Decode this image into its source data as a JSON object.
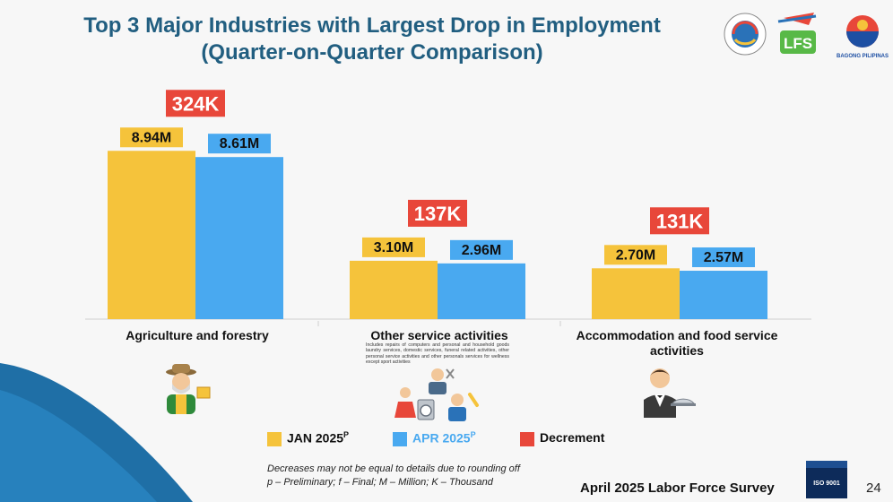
{
  "title": {
    "line1": "Top 3 Major Industries with Largest Drop in Employment",
    "line2": "(Quarter-on-Quarter Comparison)"
  },
  "colors": {
    "jan": "#f5c33b",
    "apr": "#49a9f0",
    "decrement": "#e8473a",
    "title": "#215e80"
  },
  "chart_data": {
    "type": "bar",
    "categories": [
      "Agriculture and forestry",
      "Other service activities",
      "Accommodation and food service activities"
    ],
    "series": [
      {
        "name": "JAN 2025",
        "values": [
          8.94,
          3.1,
          2.7
        ],
        "labels": [
          "8.94M",
          "3.10M",
          "2.70M"
        ]
      },
      {
        "name": "APR 2025",
        "values": [
          8.61,
          2.96,
          2.57
        ],
        "labels": [
          "8.61M",
          "2.96M",
          "2.57M"
        ]
      }
    ],
    "decrement": {
      "name": "Decrement",
      "labels": [
        "324K",
        "137K",
        "131K"
      ]
    },
    "unit": "Million",
    "ylim": [
      0,
      10
    ],
    "grid": false,
    "legend": "bottom"
  },
  "categories_text": {
    "agri": "Agriculture and forestry",
    "other": "Other service activities",
    "other_desc": "Includes repairs of computers and personal and household goods laundry services, domestic services, funeral related activities, other personal service activities and other personals services for wellness except sport activities",
    "accom_line1": "Accommodation and food service",
    "accom_line2": "activities"
  },
  "legend": {
    "jan": "JAN 2025",
    "jan_sup": "P",
    "apr": "APR 2025",
    "apr_sup": "P",
    "dec": "Decrement"
  },
  "footnote": {
    "line1": "Decreases may not be equal to details due to rounding off",
    "line2": "p – Preliminary; f – Final; M – Million; K – Thousand"
  },
  "footer": {
    "survey": "April 2025 Labor Force Survey",
    "page": "24",
    "iso": "ISO 9001",
    "logo_text": "BAGONG PILIPINAS",
    "lfs_logo": "LFS"
  },
  "icons": {
    "agri": "farmer-icon",
    "other": "service-workers-icon",
    "accom": "waiter-icon"
  }
}
